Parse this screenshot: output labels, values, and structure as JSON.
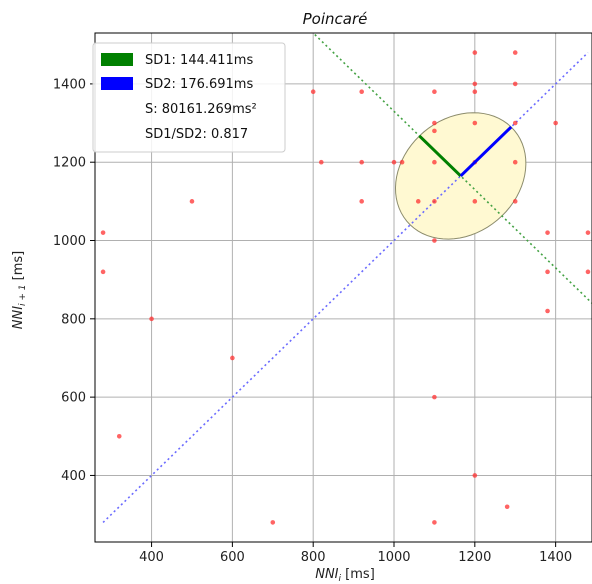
{
  "chart_data": {
    "type": "scatter",
    "title": "Poincaré",
    "xlabel": "NNI_i [ms]",
    "ylabel": "NNI_i+1 [ms]",
    "xlim": [
      260,
      1490
    ],
    "ylim": [
      230,
      1530
    ],
    "xticks": [
      400,
      600,
      800,
      1000,
      1200,
      1400
    ],
    "yticks": [
      400,
      600,
      800,
      1000,
      1200,
      1400
    ],
    "grid": true,
    "legend_position": "top-left",
    "legend": [
      {
        "label": "SD1: 144.411ms",
        "color": "#008000"
      },
      {
        "label": "SD2: 176.691ms",
        "color": "#0000ff"
      },
      {
        "label": "S: 80161.269ms²",
        "color": null
      },
      {
        "label": "SD1/SD2: 0.817",
        "color": null
      }
    ],
    "colors": {
      "points": "#ff3030",
      "identity_line": "#6b6bff",
      "sd1_axis_line": "#44a244",
      "ellipse_fill": "#fff9d2",
      "ellipse_stroke": "#8c8c6c",
      "sd1": "#008000",
      "sd2": "#0000ff"
    },
    "center": [
      1165,
      1165
    ],
    "sd1": 144.411,
    "sd2": 176.691,
    "points": [
      [
        280,
        1020
      ],
      [
        280,
        920
      ],
      [
        320,
        500
      ],
      [
        400,
        800
      ],
      [
        500,
        1100
      ],
      [
        600,
        700
      ],
      [
        700,
        280
      ],
      [
        800,
        1380
      ],
      [
        820,
        1200
      ],
      [
        920,
        1380
      ],
      [
        920,
        1200
      ],
      [
        920,
        1100
      ],
      [
        1000,
        1200
      ],
      [
        1020,
        1200
      ],
      [
        1060,
        1100
      ],
      [
        1100,
        1380
      ],
      [
        1100,
        1300
      ],
      [
        1100,
        1280
      ],
      [
        1100,
        1200
      ],
      [
        1100,
        1100
      ],
      [
        1100,
        1000
      ],
      [
        1100,
        600
      ],
      [
        1100,
        280
      ],
      [
        1200,
        1480
      ],
      [
        1200,
        1400
      ],
      [
        1200,
        1380
      ],
      [
        1200,
        1300
      ],
      [
        1200,
        1200
      ],
      [
        1200,
        1100
      ],
      [
        1200,
        400
      ],
      [
        1280,
        320
      ],
      [
        1300,
        1480
      ],
      [
        1300,
        1400
      ],
      [
        1300,
        1300
      ],
      [
        1300,
        1200
      ],
      [
        1300,
        1100
      ],
      [
        1380,
        1020
      ],
      [
        1380,
        920
      ],
      [
        1380,
        820
      ],
      [
        1400,
        1300
      ],
      [
        1480,
        1020
      ],
      [
        1480,
        920
      ]
    ]
  }
}
